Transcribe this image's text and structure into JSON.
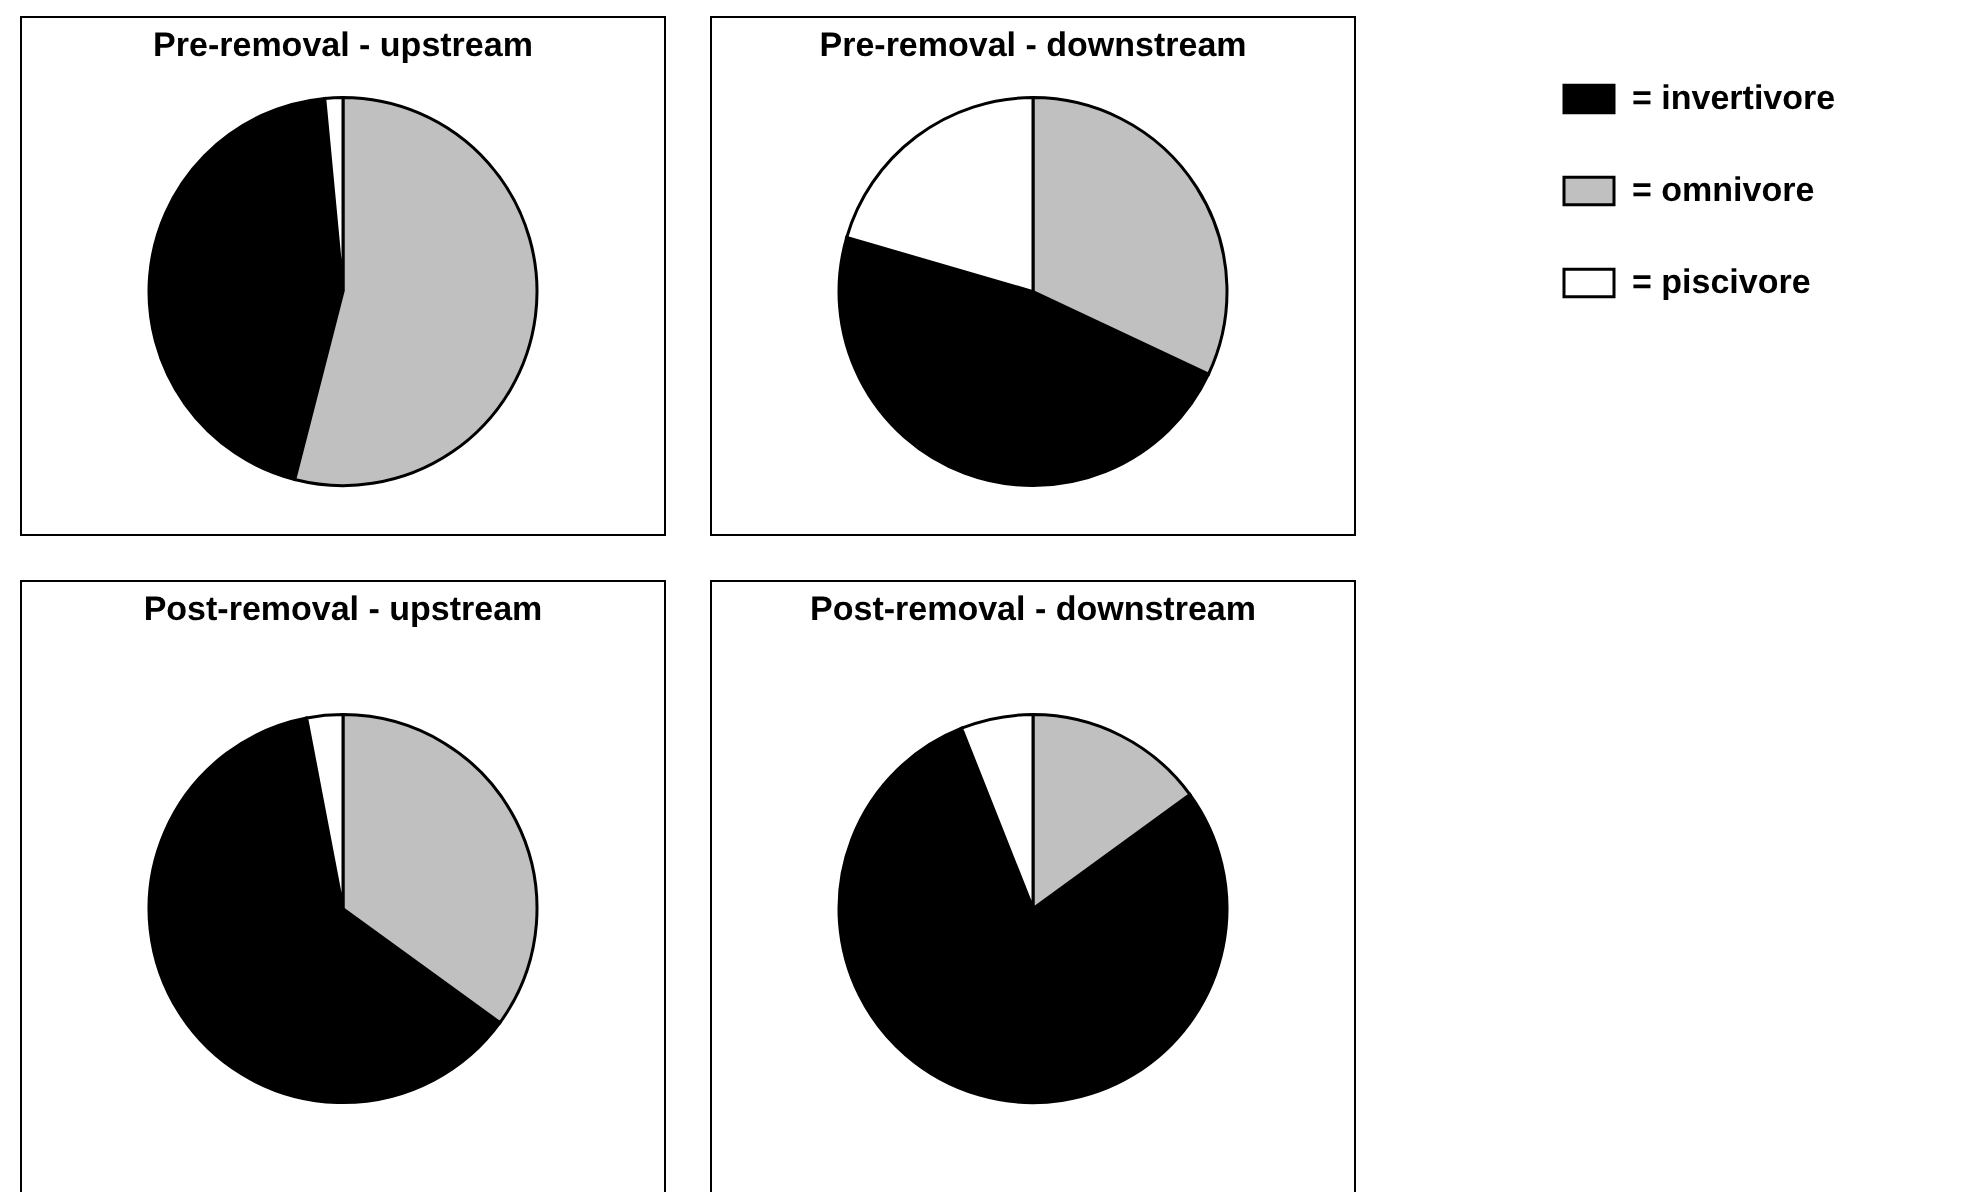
{
  "chart_data": [
    {
      "type": "pie",
      "title": "Pre-removal - upstream",
      "categories": [
        null,
        null,
        null
      ],
      "values": [
        44.5,
        54,
        1.5
      ],
      "colors": [
        "#000000",
        "#c0c0c0",
        "#ffffff"
      ]
    },
    {
      "type": "pie",
      "title": "Pre-removal - downstream",
      "categories": [
        "= invertivore",
        "= omnivore",
        "= piscivore"
      ],
      "values": [
        47.5,
        32,
        20.5
      ],
      "colors": [
        "#000000",
        "#c0c0c0",
        "#ffffff"
      ],
      "legend": "right"
    },
    {
      "type": "pie",
      "title": "Post-removal - upstream",
      "categories": [
        null,
        null,
        null
      ],
      "values": [
        62,
        35,
        3
      ],
      "colors": [
        "#000000",
        "#c0c0c0",
        "#ffffff"
      ]
    },
    {
      "type": "pie",
      "title": "Post-removal - downstream",
      "categories": [
        null,
        null,
        null
      ],
      "values": [
        79,
        15,
        6
      ],
      "colors": [
        "#000000",
        "#c0c0c0",
        "#ffffff"
      ]
    }
  ]
}
